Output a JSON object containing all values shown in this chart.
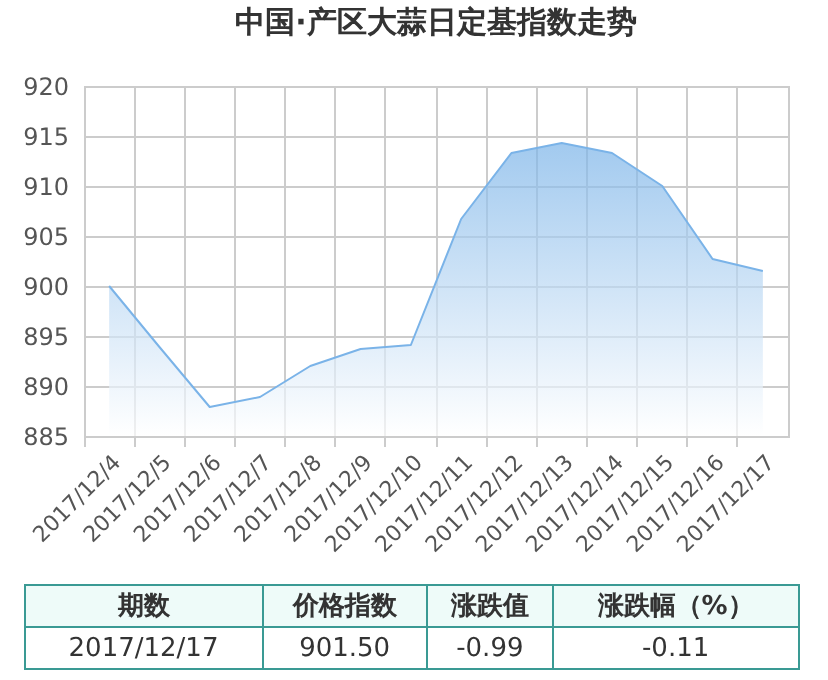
{
  "chart_data": {
    "type": "area",
    "title": "中国·产区大蒜日定基指数走势",
    "categories": [
      "2017/12/4",
      "2017/12/5",
      "2017/12/6",
      "2017/12/7",
      "2017/12/8",
      "2017/12/9",
      "2017/12/10",
      "2017/12/11",
      "2017/12/12",
      "2017/12/13",
      "2017/12/14",
      "2017/12/15",
      "2017/12/16",
      "2017/12/17"
    ],
    "values": [
      900,
      893.9,
      887.9,
      888.9,
      892,
      893.7,
      894.1,
      906.7,
      913.3,
      914.3,
      913.3,
      910,
      902.7,
      901.5
    ],
    "color": "#7ab3e8",
    "ylim": [
      885,
      920
    ],
    "yticks": [
      885,
      890,
      895,
      900,
      905,
      910,
      915,
      920
    ],
    "grid": true,
    "annotations": [
      "期数",
      "价格指数",
      "涨跌值",
      "涨跌幅（%）",
      "2017/12/17",
      "901.50",
      "-0.99",
      "-0.11"
    ]
  }
}
